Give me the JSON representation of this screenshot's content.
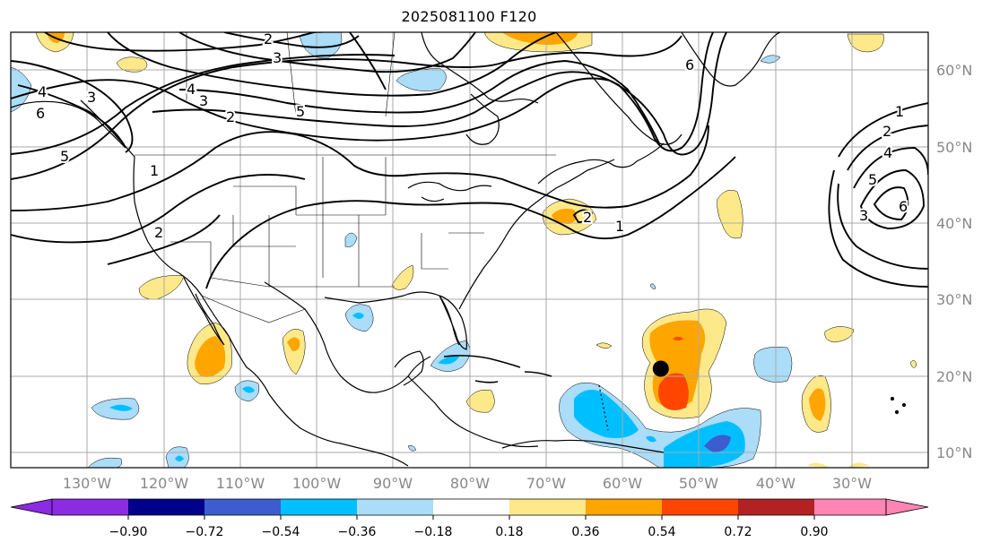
{
  "title": "2025081100 F120",
  "map": {
    "lon_labels": [
      "130°W",
      "120°W",
      "110°W",
      "100°W",
      "90°W",
      "80°W",
      "70°W",
      "60°W",
      "50°W",
      "40°W",
      "30°W"
    ],
    "lat_labels": [
      "60°N",
      "50°N",
      "40°N",
      "30°N",
      "20°N",
      "10°N"
    ],
    "contour_labels": [
      "2",
      "3",
      "4",
      "3",
      "2",
      "3",
      "6",
      "5",
      "4",
      "5",
      "1",
      "2",
      "6",
      "1",
      "2",
      "4",
      "5",
      "6",
      "1",
      "2",
      "3"
    ],
    "storm_marker": {
      "lon": -55.0,
      "lat": 21.0
    }
  },
  "colorbar": {
    "ticks": [
      "−0.90",
      "−0.72",
      "−0.54",
      "−0.36",
      "−0.18",
      "0.18",
      "0.36",
      "0.54",
      "0.72",
      "0.90"
    ],
    "colors": [
      "#8b2be2",
      "#00008b",
      "#3d5ccf",
      "#00bfff",
      "#abdcf8",
      "#ffffff",
      "#fde98a",
      "#ffa500",
      "#ff4500",
      "#b22222",
      "#ff85b4"
    ]
  }
}
